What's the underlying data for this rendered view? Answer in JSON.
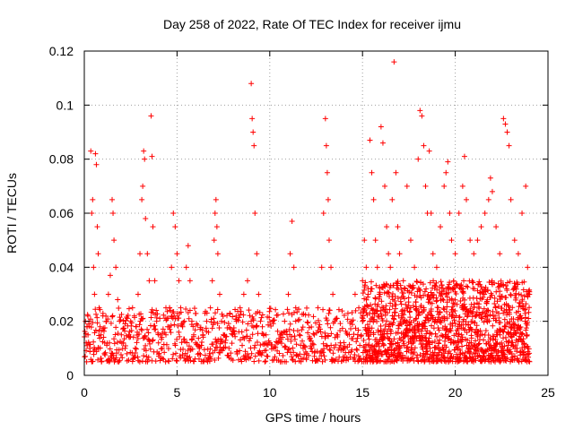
{
  "chart_data": {
    "type": "scatter",
    "title": "Day 258 of 2022, Rate Of TEC Index for receiver ijmu",
    "xlabel": "GPS time / hours",
    "ylabel": "ROTI / TECUs",
    "xlim": [
      0,
      25
    ],
    "ylim": [
      0,
      0.12
    ],
    "xticks": [
      0,
      5,
      10,
      15,
      20,
      25
    ],
    "xtick_labels": [
      "0",
      "5",
      "10",
      "15",
      "20",
      "25"
    ],
    "yticks": [
      0,
      0.02,
      0.04,
      0.06,
      0.08,
      0.1,
      0.12
    ],
    "ytick_labels": [
      "0",
      "0.02",
      "0.04",
      "0.06",
      "0.08",
      "0.1",
      "0.12"
    ],
    "grid": true,
    "marker": "plus",
    "color": "#ff0000",
    "series": [
      {
        "points": [
          [
            0.05,
            0.007
          ],
          [
            0.1,
            0.012
          ],
          [
            0.15,
            0.018
          ],
          [
            0.2,
            0.015
          ],
          [
            0.25,
            0.02
          ],
          [
            0.3,
            0.01
          ],
          [
            0.35,
            0.083
          ],
          [
            0.4,
            0.06
          ],
          [
            0.45,
            0.065
          ],
          [
            0.5,
            0.04
          ],
          [
            0.55,
            0.03
          ],
          [
            0.6,
            0.082
          ],
          [
            0.65,
            0.078
          ],
          [
            0.7,
            0.055
          ],
          [
            0.75,
            0.045
          ],
          [
            0.8,
            0.025
          ],
          [
            0.85,
            0.018
          ],
          [
            0.9,
            0.015
          ],
          [
            1.0,
            0.022
          ],
          [
            1.1,
            0.012
          ],
          [
            1.2,
            0.02
          ],
          [
            1.3,
            0.03
          ],
          [
            1.4,
            0.037
          ],
          [
            1.5,
            0.065
          ],
          [
            1.55,
            0.06
          ],
          [
            1.6,
            0.05
          ],
          [
            1.7,
            0.04
          ],
          [
            1.8,
            0.028
          ],
          [
            1.9,
            0.02
          ],
          [
            2.0,
            0.015
          ],
          [
            2.1,
            0.012
          ],
          [
            2.2,
            0.01
          ],
          [
            2.3,
            0.008
          ],
          [
            2.4,
            0.015
          ],
          [
            2.5,
            0.02
          ],
          [
            2.6,
            0.025
          ],
          [
            2.7,
            0.022
          ],
          [
            2.8,
            0.018
          ],
          [
            2.9,
            0.03
          ],
          [
            3.0,
            0.045
          ],
          [
            3.1,
            0.065
          ],
          [
            3.15,
            0.07
          ],
          [
            3.2,
            0.083
          ],
          [
            3.25,
            0.08
          ],
          [
            3.3,
            0.058
          ],
          [
            3.4,
            0.045
          ],
          [
            3.5,
            0.035
          ],
          [
            3.6,
            0.096
          ],
          [
            3.65,
            0.081
          ],
          [
            3.7,
            0.055
          ],
          [
            3.8,
            0.035
          ],
          [
            3.9,
            0.02
          ],
          [
            4.0,
            0.012
          ],
          [
            4.2,
            0.01
          ],
          [
            4.4,
            0.015
          ],
          [
            4.5,
            0.018
          ],
          [
            4.6,
            0.025
          ],
          [
            4.7,
            0.04
          ],
          [
            4.8,
            0.06
          ],
          [
            4.9,
            0.055
          ],
          [
            5.0,
            0.045
          ],
          [
            5.1,
            0.035
          ],
          [
            5.2,
            0.025
          ],
          [
            5.3,
            0.018
          ],
          [
            5.4,
            0.02
          ],
          [
            5.5,
            0.04
          ],
          [
            5.6,
            0.048
          ],
          [
            5.7,
            0.035
          ],
          [
            5.8,
            0.02
          ],
          [
            5.9,
            0.015
          ],
          [
            6.0,
            0.012
          ],
          [
            6.2,
            0.01
          ],
          [
            6.4,
            0.015
          ],
          [
            6.6,
            0.02
          ],
          [
            6.8,
            0.025
          ],
          [
            6.9,
            0.035
          ],
          [
            7.0,
            0.05
          ],
          [
            7.05,
            0.06
          ],
          [
            7.1,
            0.065
          ],
          [
            7.15,
            0.055
          ],
          [
            7.2,
            0.045
          ],
          [
            7.3,
            0.03
          ],
          [
            7.4,
            0.02
          ],
          [
            7.5,
            0.015
          ],
          [
            7.6,
            0.012
          ],
          [
            7.8,
            0.01
          ],
          [
            8.0,
            0.015
          ],
          [
            8.2,
            0.02
          ],
          [
            8.4,
            0.025
          ],
          [
            8.6,
            0.03
          ],
          [
            8.8,
            0.035
          ],
          [
            9.0,
            0.108
          ],
          [
            9.05,
            0.095
          ],
          [
            9.1,
            0.09
          ],
          [
            9.15,
            0.085
          ],
          [
            9.2,
            0.06
          ],
          [
            9.3,
            0.045
          ],
          [
            9.4,
            0.03
          ],
          [
            9.5,
            0.02
          ],
          [
            9.6,
            0.018
          ],
          [
            9.8,
            0.015
          ],
          [
            10.0,
            0.012
          ],
          [
            10.2,
            0.01
          ],
          [
            10.4,
            0.012
          ],
          [
            10.6,
            0.015
          ],
          [
            10.8,
            0.02
          ],
          [
            11.0,
            0.03
          ],
          [
            11.1,
            0.045
          ],
          [
            11.2,
            0.057
          ],
          [
            11.3,
            0.04
          ],
          [
            11.4,
            0.025
          ],
          [
            11.6,
            0.015
          ],
          [
            11.8,
            0.01
          ],
          [
            12.0,
            0.008
          ],
          [
            12.2,
            0.01
          ],
          [
            12.4,
            0.015
          ],
          [
            12.6,
            0.025
          ],
          [
            12.8,
            0.04
          ],
          [
            12.9,
            0.06
          ],
          [
            13.0,
            0.095
          ],
          [
            13.05,
            0.085
          ],
          [
            13.1,
            0.075
          ],
          [
            13.15,
            0.065
          ],
          [
            13.2,
            0.05
          ],
          [
            13.3,
            0.04
          ],
          [
            13.4,
            0.03
          ],
          [
            13.5,
            0.02
          ],
          [
            13.6,
            0.015
          ],
          [
            13.8,
            0.012
          ],
          [
            14.0,
            0.01
          ],
          [
            14.2,
            0.015
          ],
          [
            14.4,
            0.02
          ],
          [
            14.6,
            0.03
          ],
          [
            14.8,
            0.025
          ],
          [
            15.0,
            0.035
          ],
          [
            15.1,
            0.05
          ],
          [
            15.2,
            0.04
          ],
          [
            15.3,
            0.03
          ],
          [
            15.4,
            0.087
          ],
          [
            15.5,
            0.075
          ],
          [
            15.6,
            0.065
          ],
          [
            15.7,
            0.05
          ],
          [
            15.8,
            0.04
          ],
          [
            15.9,
            0.03
          ],
          [
            16.0,
            0.092
          ],
          [
            16.1,
            0.086
          ],
          [
            16.2,
            0.07
          ],
          [
            16.3,
            0.055
          ],
          [
            16.4,
            0.045
          ],
          [
            16.5,
            0.04
          ],
          [
            16.6,
            0.065
          ],
          [
            16.7,
            0.116
          ],
          [
            16.8,
            0.075
          ],
          [
            16.9,
            0.055
          ],
          [
            17.0,
            0.045
          ],
          [
            17.2,
            0.035
          ],
          [
            17.4,
            0.07
          ],
          [
            17.6,
            0.05
          ],
          [
            17.8,
            0.04
          ],
          [
            18.0,
            0.08
          ],
          [
            18.1,
            0.098
          ],
          [
            18.2,
            0.096
          ],
          [
            18.3,
            0.085
          ],
          [
            18.4,
            0.07
          ],
          [
            18.5,
            0.06
          ],
          [
            18.6,
            0.083
          ],
          [
            18.7,
            0.06
          ],
          [
            18.8,
            0.045
          ],
          [
            19.0,
            0.04
          ],
          [
            19.2,
            0.055
          ],
          [
            19.4,
            0.07
          ],
          [
            19.5,
            0.075
          ],
          [
            19.6,
            0.079
          ],
          [
            19.7,
            0.06
          ],
          [
            19.8,
            0.05
          ],
          [
            20.0,
            0.045
          ],
          [
            20.2,
            0.06
          ],
          [
            20.4,
            0.07
          ],
          [
            20.5,
            0.081
          ],
          [
            20.6,
            0.065
          ],
          [
            20.8,
            0.05
          ],
          [
            21.0,
            0.045
          ],
          [
            21.2,
            0.05
          ],
          [
            21.4,
            0.055
          ],
          [
            21.6,
            0.06
          ],
          [
            21.8,
            0.065
          ],
          [
            21.9,
            0.073
          ],
          [
            22.0,
            0.068
          ],
          [
            22.2,
            0.055
          ],
          [
            22.4,
            0.045
          ],
          [
            22.6,
            0.095
          ],
          [
            22.7,
            0.093
          ],
          [
            22.8,
            0.09
          ],
          [
            22.9,
            0.085
          ],
          [
            23.0,
            0.065
          ],
          [
            23.2,
            0.05
          ],
          [
            23.4,
            0.045
          ],
          [
            23.6,
            0.06
          ],
          [
            23.8,
            0.07
          ],
          [
            23.9,
            0.04
          ],
          [
            24.0,
            0.03
          ]
        ]
      }
    ],
    "base_band": {
      "x_start": 0,
      "x_end": 24,
      "typical_low": 0.005,
      "typical_high": 0.025
    }
  }
}
